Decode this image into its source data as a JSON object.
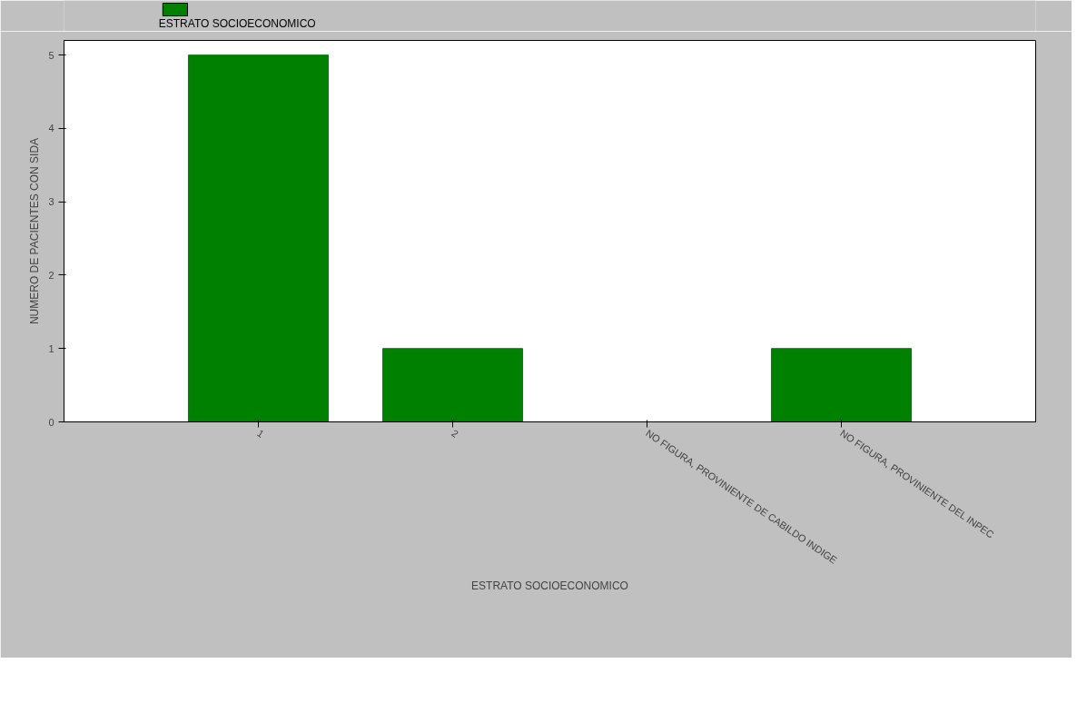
{
  "chart_data": {
    "type": "bar",
    "xlabel": "ESTRATO SOCIOECONOMICO",
    "ylabel": "NUMERO DE PACIENTES CON SIDA",
    "categories": [
      "1",
      "2",
      "NO FIGURA,  PROVINIENTE DE CABILDO INDIGE",
      "NO FIGURA,  PROVINIENTE DEL INPEC"
    ],
    "series": [
      {
        "name": "ESTRATO SOCIOECONOMICO",
        "color": "#008000",
        "values": [
          5,
          1,
          0,
          1
        ]
      }
    ],
    "ylim": [
      0,
      5.2
    ],
    "yticks": [
      0,
      1,
      2,
      3,
      4,
      5
    ],
    "grid": false,
    "legend": "top left"
  }
}
